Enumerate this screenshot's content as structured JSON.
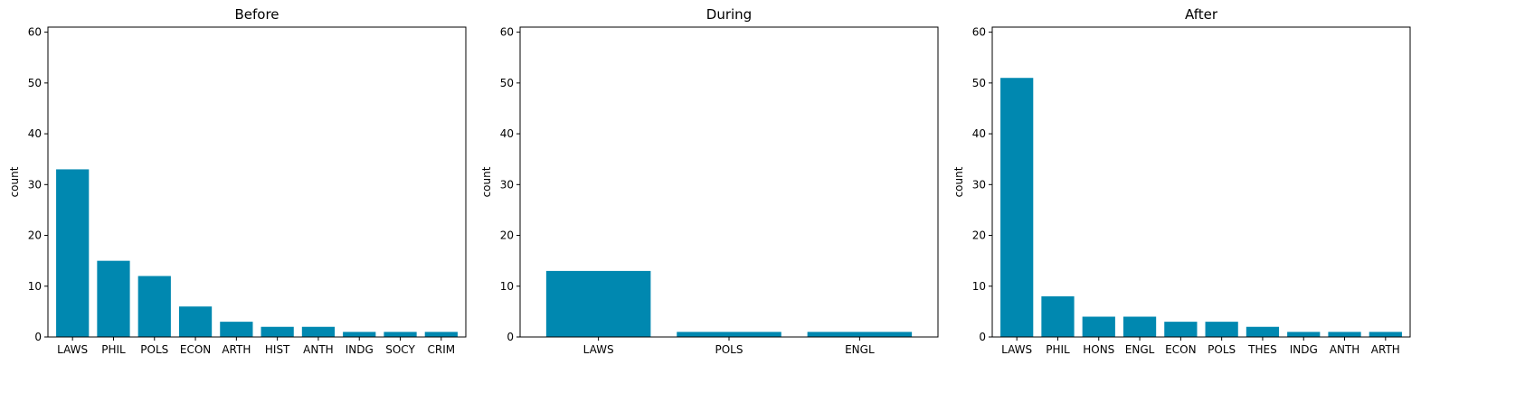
{
  "chart_data": [
    {
      "type": "bar",
      "title": "Before",
      "ylabel": "count",
      "ylim": [
        0,
        61
      ],
      "yticks": [
        0,
        10,
        20,
        30,
        40,
        50,
        60
      ],
      "categories": [
        "LAWS",
        "PHIL",
        "POLS",
        "ECON",
        "ARTH",
        "HIST",
        "ANTH",
        "INDG",
        "SOCY",
        "CRIM"
      ],
      "values": [
        33,
        15,
        12,
        6,
        3,
        2,
        2,
        1,
        1,
        1
      ],
      "color": "#0088b0"
    },
    {
      "type": "bar",
      "title": "During",
      "ylabel": "count",
      "ylim": [
        0,
        61
      ],
      "yticks": [
        0,
        10,
        20,
        30,
        40,
        50,
        60
      ],
      "categories": [
        "LAWS",
        "POLS",
        "ENGL"
      ],
      "values": [
        13,
        1,
        1
      ],
      "color": "#0088b0"
    },
    {
      "type": "bar",
      "title": "After",
      "ylabel": "count",
      "ylim": [
        0,
        61
      ],
      "yticks": [
        0,
        10,
        20,
        30,
        40,
        50,
        60
      ],
      "categories": [
        "LAWS",
        "PHIL",
        "HONS",
        "ENGL",
        "ECON",
        "POLS",
        "THES",
        "INDG",
        "ANTH",
        "ARTH"
      ],
      "values": [
        51,
        8,
        4,
        4,
        3,
        3,
        2,
        1,
        1,
        1
      ],
      "color": "#0088b0"
    }
  ]
}
